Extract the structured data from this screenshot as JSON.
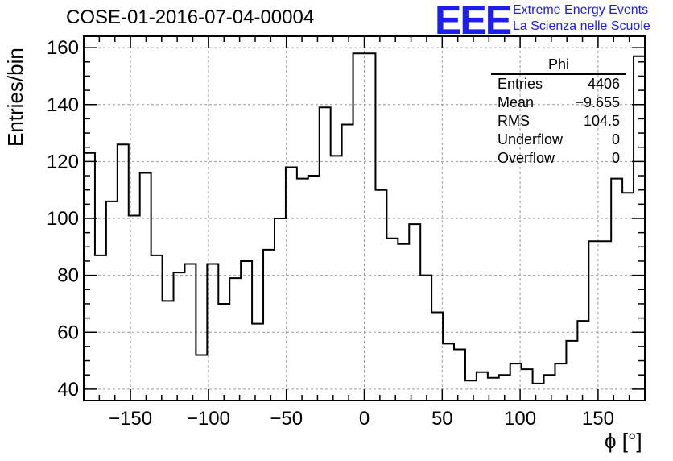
{
  "header": {
    "title": "COSE-01-2016-07-04-00004",
    "logo_text": "EEE",
    "brand_line1": "Extreme Energy Events",
    "brand_line2": "La Scienza nelle Scuole"
  },
  "stats_box": {
    "title": "Phi",
    "rows": [
      {
        "label": "Entries",
        "value": "4406"
      },
      {
        "label": "Mean",
        "value": "−9.655"
      },
      {
        "label": "RMS",
        "value": "104.5"
      },
      {
        "label": "Underflow",
        "value": "0"
      },
      {
        "label": "Overflow",
        "value": "0"
      }
    ]
  },
  "colors": {
    "logo": "#1d1df0",
    "line": "#000000",
    "grid": "#9a9a9a"
  },
  "chart_data": {
    "type": "histogram",
    "title": "COSE-01-2016-07-04-00004",
    "xlabel": "ϕ [°]",
    "ylabel": "Entries/bin",
    "xlim": [
      -180,
      180
    ],
    "ylim": [
      36,
      164
    ],
    "grid": true,
    "xticks": [
      -150,
      -100,
      -50,
      0,
      50,
      100,
      150
    ],
    "xtick_labels": [
      "−150",
      "−100",
      "−50",
      "0",
      "50",
      "100",
      "150"
    ],
    "yticks": [
      40,
      60,
      80,
      100,
      120,
      140,
      160
    ],
    "yticks_labels": [
      "40",
      "60",
      "80",
      "100",
      "120",
      "140",
      "160"
    ],
    "bin_edges_start": -180,
    "bin_width": 7.2,
    "values": [
      123,
      87,
      106,
      126,
      101,
      116,
      87,
      71,
      81,
      84,
      52,
      84,
      70,
      79,
      85,
      63,
      89,
      100,
      118,
      114,
      115,
      139,
      122,
      133,
      158,
      158,
      110,
      93,
      91,
      98,
      80,
      67,
      56,
      54,
      43,
      46,
      44,
      45,
      49,
      47,
      42,
      45,
      49,
      57,
      64,
      92,
      92,
      114,
      109,
      157
    ]
  }
}
